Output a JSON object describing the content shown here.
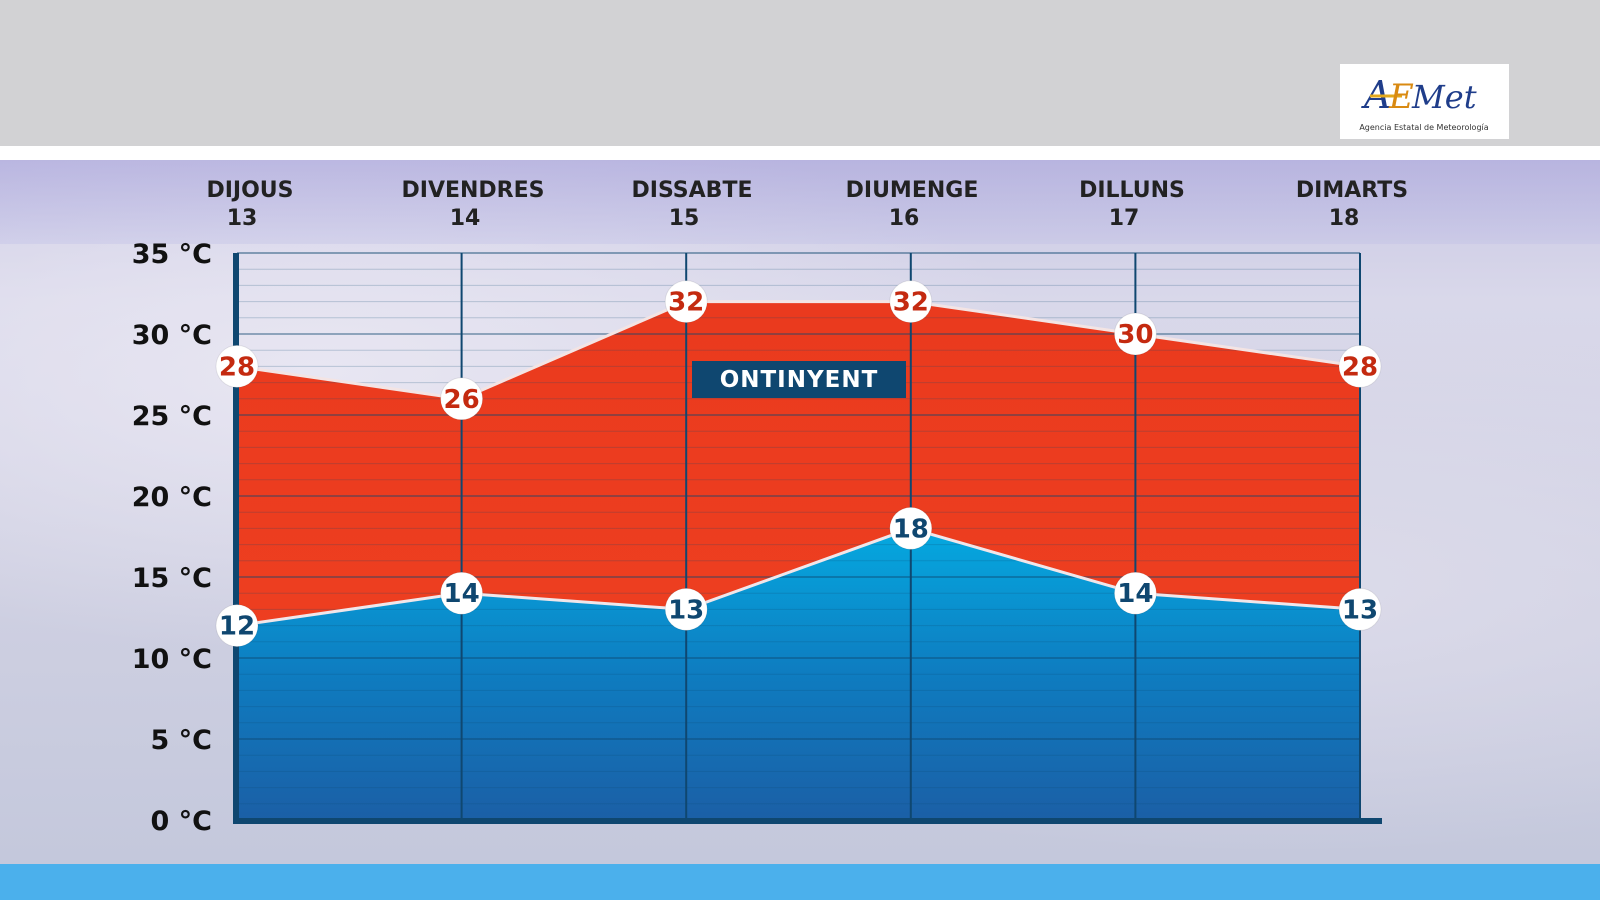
{
  "logo": {
    "text": "AEMet",
    "subtitle": "Agencia Estatal de Meteorología"
  },
  "city": "ONTINYENT",
  "chart_data": {
    "type": "area",
    "categories": [
      {
        "day": "DIJOUS",
        "date": "13"
      },
      {
        "day": "DIVENDRES",
        "date": "14"
      },
      {
        "day": "DISSABTE",
        "date": "15"
      },
      {
        "day": "DIUMENGE",
        "date": "16"
      },
      {
        "day": "DILLUNS",
        "date": "17"
      },
      {
        "day": "DIMARTS",
        "date": "18"
      }
    ],
    "series": [
      {
        "values": [
          28,
          26,
          32,
          32,
          30,
          28
        ],
        "color": "#e8321c"
      },
      {
        "values": [
          12,
          14,
          13,
          18,
          14,
          13
        ],
        "color": "#1a8fd0"
      }
    ],
    "y_ticks": [
      "0 °C",
      "5 °C",
      "10 °C",
      "15 °C",
      "20 °C",
      "25 °C",
      "30 °C",
      "35 °C"
    ],
    "ylim": [
      0,
      35
    ],
    "grid": true
  },
  "colors": {
    "max_text": "#c42a10",
    "min_text": "#0f4770",
    "axis": "#0f4770",
    "bottom_band": "#4bb0ec"
  }
}
